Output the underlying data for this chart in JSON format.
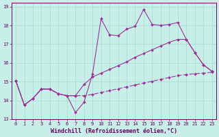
{
  "xlabel": "Windchill (Refroidissement éolien,°C)",
  "bg_color": "#c8eee8",
  "grid_color": "#a8d8d0",
  "line_color": "#993399",
  "xlim": [
    -0.5,
    23.5
  ],
  "ylim": [
    13,
    19.2
  ],
  "yticks": [
    13,
    14,
    15,
    16,
    17,
    18,
    19
  ],
  "xticks": [
    0,
    1,
    2,
    3,
    4,
    5,
    6,
    7,
    8,
    9,
    10,
    11,
    12,
    13,
    14,
    15,
    16,
    17,
    18,
    19,
    20,
    21,
    22,
    23
  ],
  "line1_x": [
    0,
    1,
    2,
    3,
    4,
    5,
    6,
    7,
    8,
    9,
    10,
    11,
    12,
    13,
    14,
    15,
    16,
    17,
    18,
    19,
    20,
    21,
    22,
    23
  ],
  "line1_y": [
    15.05,
    13.75,
    14.1,
    14.6,
    14.6,
    14.35,
    14.25,
    13.35,
    13.9,
    15.4,
    18.35,
    17.5,
    17.45,
    17.8,
    17.95,
    18.85,
    18.05,
    18.0,
    18.05,
    18.15,
    17.25,
    16.55,
    15.9,
    15.55
  ],
  "line2_x": [
    0,
    1,
    2,
    3,
    4,
    5,
    6,
    7,
    8,
    9,
    10,
    11,
    12,
    13,
    14,
    15,
    16,
    17,
    18,
    19,
    20,
    21,
    22,
    23
  ],
  "line2_y": [
    15.05,
    13.75,
    14.1,
    14.6,
    14.6,
    14.35,
    14.25,
    14.25,
    14.85,
    15.25,
    15.45,
    15.65,
    15.85,
    16.05,
    16.3,
    16.5,
    16.7,
    16.9,
    17.1,
    17.25,
    17.25,
    16.55,
    15.9,
    15.55
  ],
  "line3_x": [
    0,
    1,
    2,
    3,
    4,
    5,
    6,
    7,
    8,
    9,
    10,
    11,
    12,
    13,
    14,
    15,
    16,
    17,
    18,
    19,
    20,
    21,
    22,
    23
  ],
  "line3_y": [
    15.05,
    13.75,
    14.1,
    14.6,
    14.6,
    14.35,
    14.25,
    14.25,
    14.25,
    14.32,
    14.42,
    14.52,
    14.62,
    14.72,
    14.82,
    14.92,
    15.02,
    15.12,
    15.22,
    15.32,
    15.38,
    15.42,
    15.45,
    15.5
  ],
  "marker": "D",
  "markersize": 2.0,
  "linewidth": 0.8,
  "font_color": "#660066",
  "tick_fontsize": 5.0,
  "xlabel_fontsize": 6.0
}
